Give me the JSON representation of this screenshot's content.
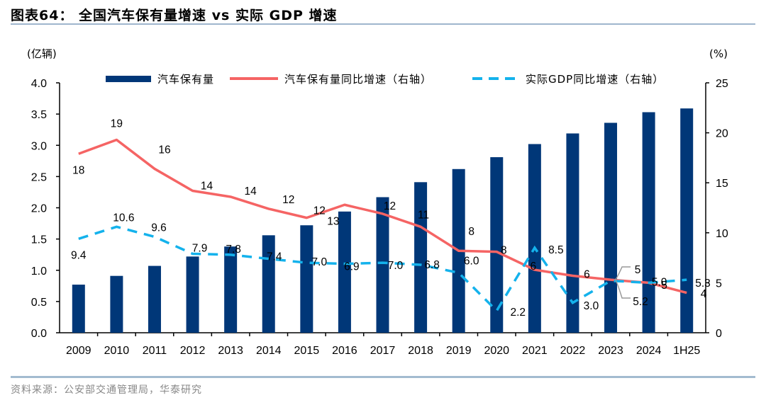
{
  "title": "图表64：  全国汽车保有量增速 vs 实际 GDP 增速",
  "source": "资料来源：公安部交通管理局，华泰研究",
  "chart_data": {
    "type": "bar",
    "title": "全国汽车保有量增速 vs 实际 GDP 增速",
    "categories": [
      "2009",
      "2010",
      "2011",
      "2012",
      "2013",
      "2014",
      "2015",
      "2016",
      "2017",
      "2018",
      "2019",
      "2020",
      "2021",
      "2022",
      "2023",
      "2024",
      "1H25"
    ],
    "left_axis": {
      "label": "(亿辆)",
      "ylim": [
        0,
        4.0
      ],
      "ticks": [
        "0.0",
        "0.5",
        "1.0",
        "1.5",
        "2.0",
        "2.5",
        "3.0",
        "3.5",
        "4.0"
      ]
    },
    "right_axis": {
      "label": "(%)",
      "ylim": [
        0,
        25
      ],
      "ticks": [
        "0",
        "5",
        "10",
        "15",
        "20",
        "25"
      ]
    },
    "grid": false,
    "legend_position": "top",
    "series": [
      {
        "name": "汽车保有量",
        "type": "bar",
        "axis": "left",
        "color": "#003778",
        "values": [
          0.77,
          0.91,
          1.07,
          1.22,
          1.38,
          1.56,
          1.72,
          1.94,
          2.17,
          2.41,
          2.62,
          2.81,
          3.02,
          3.19,
          3.36,
          3.53,
          3.59
        ]
      },
      {
        "name": "汽车保有量同比增速（右轴）",
        "type": "line",
        "axis": "right",
        "color": "#f56464",
        "values": [
          17.9,
          19.3,
          16.4,
          14.2,
          13.6,
          12.4,
          11.5,
          12.8,
          11.9,
          10.6,
          8.2,
          8.1,
          6.3,
          5.7,
          5.3,
          5.0,
          4.0
        ],
        "labels": [
          "18",
          "19",
          "16",
          "14",
          "14",
          "12",
          "12",
          "13",
          "12",
          "11",
          "8",
          "8",
          "6",
          "6",
          "5",
          "5",
          "4"
        ]
      },
      {
        "name": "实际GDP同比增速（右轴）",
        "type": "line",
        "style": "dashed",
        "axis": "right",
        "color": "#14b2ec",
        "values": [
          9.4,
          10.6,
          9.6,
          7.9,
          7.8,
          7.4,
          7.0,
          6.9,
          7.0,
          6.8,
          6.0,
          2.2,
          8.5,
          3.0,
          5.2,
          5.0,
          5.3
        ],
        "labels": [
          "9.4",
          "10.6",
          "9.6",
          "7.9",
          "7.8",
          "7.4",
          "7.0",
          "6.9",
          "7.0",
          "6.8",
          "6.0",
          "2.2",
          "8.5",
          "3.0",
          "5.2",
          "5.0",
          "5.3"
        ]
      }
    ]
  }
}
